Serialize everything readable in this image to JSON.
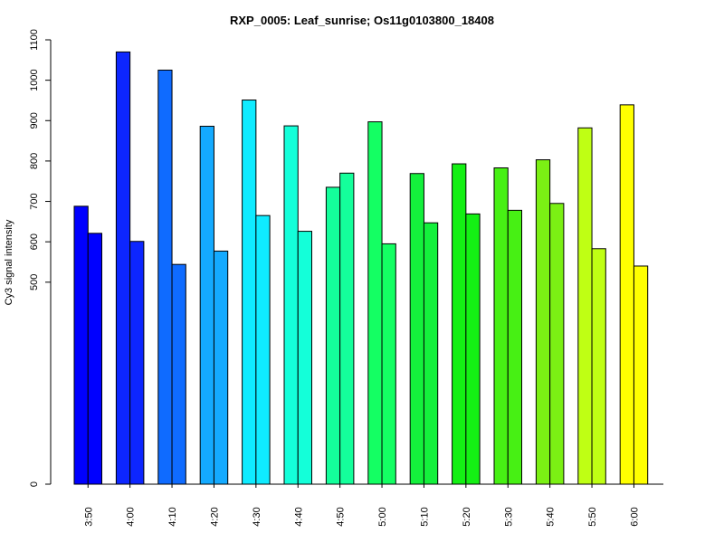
{
  "chart_data": {
    "type": "bar",
    "title": "RXP_0005: Leaf_sunrise; Os11g0103800_18408",
    "xlabel": "",
    "ylabel": "Cy3 signal intensity",
    "ylim": [
      0,
      1100
    ],
    "y_ticks": [
      0,
      500,
      600,
      700,
      800,
      900,
      1000,
      1100
    ],
    "categories": [
      "3:50",
      "4:00",
      "4:10",
      "4:20",
      "4:30",
      "4:40",
      "4:50",
      "5:00",
      "5:10",
      "5:20",
      "5:30",
      "5:40",
      "5:50",
      "6:00"
    ],
    "series": [
      {
        "values": [
          688,
          1070,
          1025,
          886,
          951,
          887,
          735,
          897,
          769,
          793,
          783,
          803,
          882,
          939
        ]
      },
      {
        "values": [
          621,
          601,
          544,
          577,
          665,
          626,
          770,
          595,
          647,
          669,
          678,
          695,
          583,
          540
        ]
      }
    ],
    "colors": [
      "#0000FF",
      "#0D26FF",
      "#0F6BFF",
      "#14AAFF",
      "#0FEBFF",
      "#14FFD9",
      "#14FF9B",
      "#14FF63",
      "#14F03C",
      "#14F014",
      "#47F014",
      "#7BF014",
      "#BFFF14",
      "#FFFF00"
    ],
    "grid": false,
    "legend": "none"
  }
}
